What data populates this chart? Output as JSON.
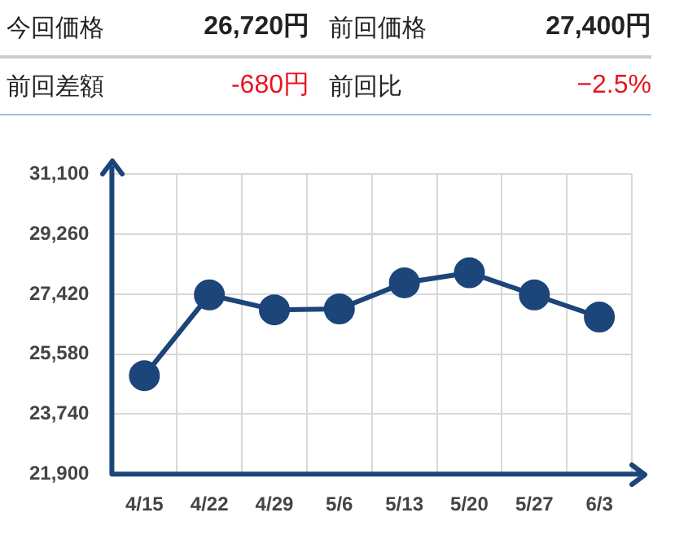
{
  "chart_data": {
    "type": "line",
    "annotations": [
      "今回価格",
      "26,720円",
      "前回価格",
      "27,400円",
      "前回差額",
      "-680円",
      "前回比",
      "−2.5%"
    ],
    "categories": [
      "4/15",
      "4/22",
      "4/29",
      "5/6",
      "5/13",
      "5/20",
      "5/27",
      "6/3"
    ],
    "series": [
      {
        "color": "#1c4579",
        "values": [
          24920,
          27400,
          26940,
          26970,
          27770,
          28080,
          27400,
          26720
        ]
      }
    ],
    "ylim": [
      21900,
      31100
    ],
    "yticks": [
      {
        "value": 21900,
        "label": "21,900"
      },
      {
        "value": 23740,
        "label": "23,740"
      },
      {
        "value": 25580,
        "label": "25,580"
      },
      {
        "value": 27420,
        "label": "27,420"
      },
      {
        "value": 29260,
        "label": "29,260"
      },
      {
        "value": 31100,
        "label": "31,100"
      }
    ],
    "grid": true,
    "marker": "circle",
    "line_style": "solid",
    "legend": false
  }
}
